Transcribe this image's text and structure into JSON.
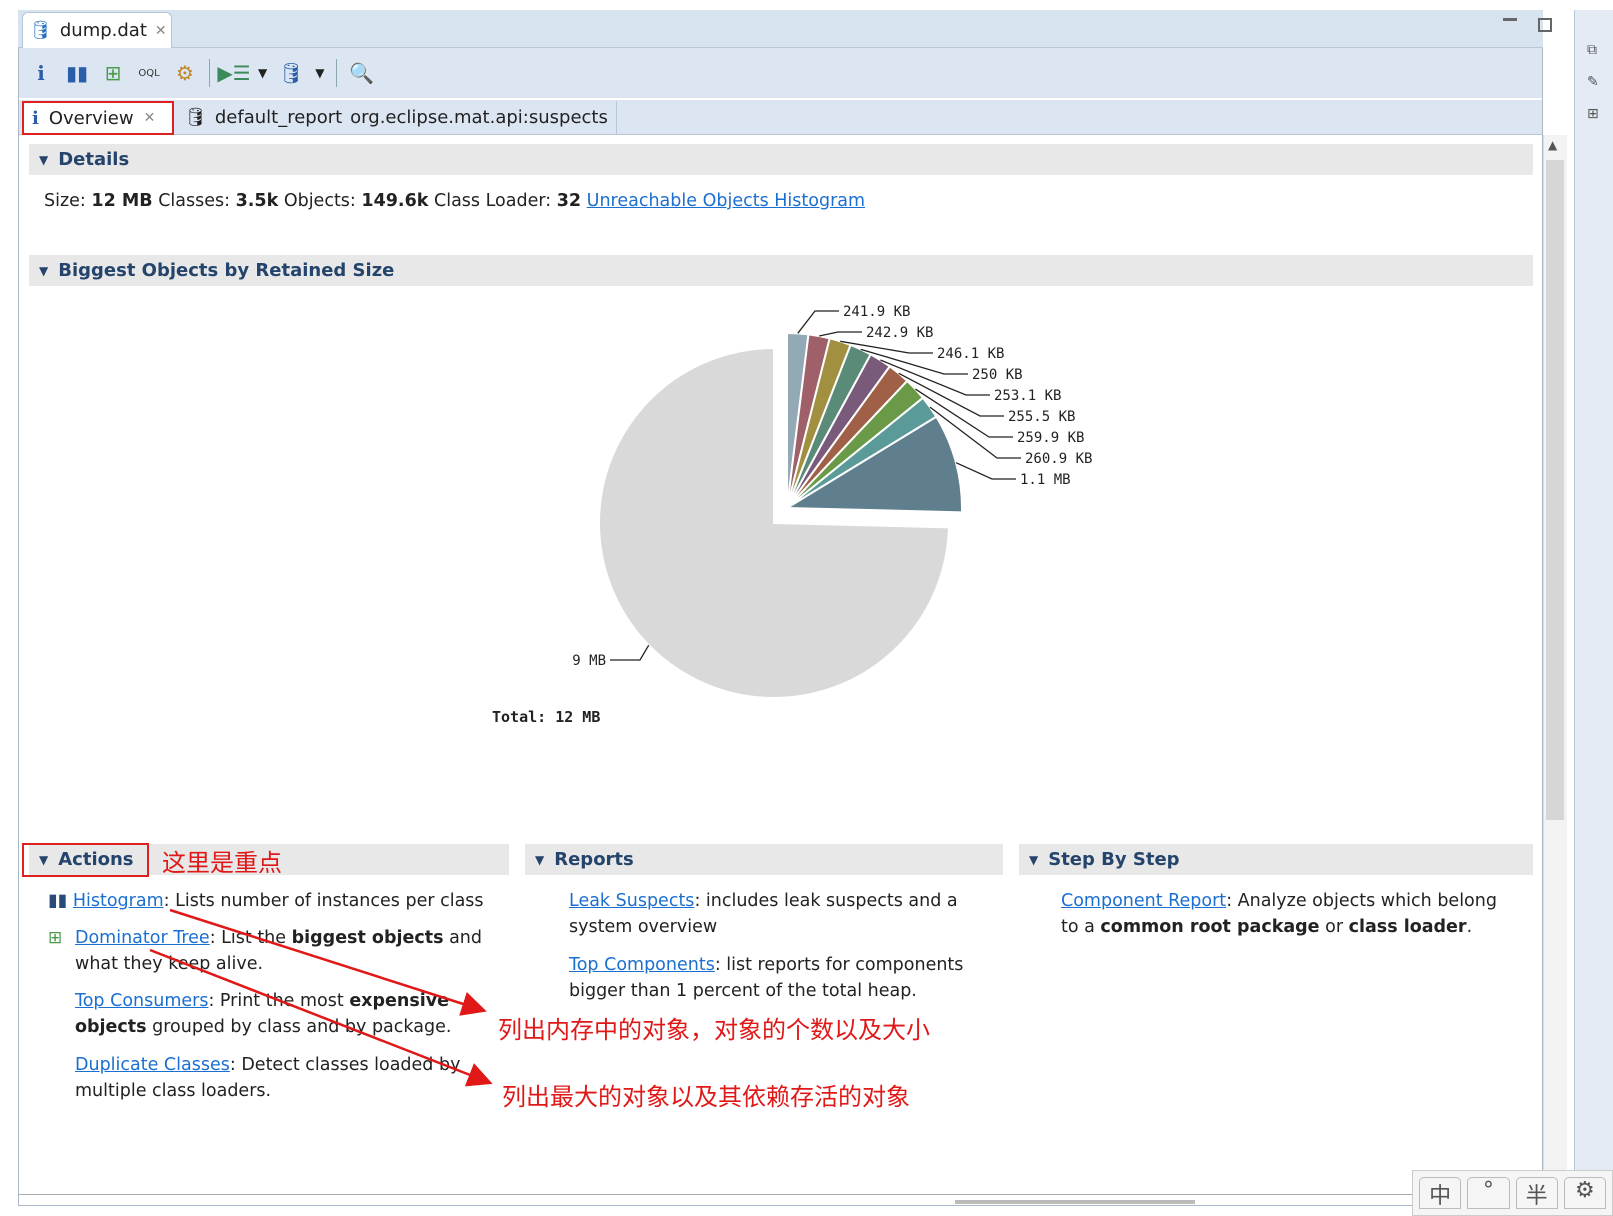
{
  "editor_tab": {
    "title": "dump.dat",
    "icon": "database-icon"
  },
  "toolbar": {
    "icons": [
      "info-icon",
      "histogram-icon",
      "dominator-tree-icon",
      "oql-icon",
      "heap-dump-overview-gear-icon",
      "run-query-icon",
      "report-icon",
      "search-icon"
    ]
  },
  "subtabs": {
    "overview": "Overview",
    "report_name": "default_report",
    "report_id": "org.eclipse.mat.api:suspects"
  },
  "details": {
    "header": "Details",
    "size_label": "Size:",
    "size": "12 MB",
    "classes_label": "Classes:",
    "classes": "3.5k",
    "objects_label": "Objects:",
    "objects": "149.6k",
    "loader_label": "Class Loader:",
    "loader": "32",
    "link": "Unreachable Objects Histogram"
  },
  "biggest": {
    "header": "Biggest Objects by Retained Size"
  },
  "chart_data": {
    "type": "pie",
    "total_label": "Total: 12 MB",
    "slices": [
      {
        "label": "241.9 KB",
        "value_kb": 241.9,
        "color": "#93a9b5"
      },
      {
        "label": "242.9 KB",
        "value_kb": 242.9,
        "color": "#a0606a"
      },
      {
        "label": "246.1 KB",
        "value_kb": 246.1,
        "color": "#a09040"
      },
      {
        "label": "250 KB",
        "value_kb": 250,
        "color": "#5a8a78"
      },
      {
        "label": "253.1 KB",
        "value_kb": 253.1,
        "color": "#7a5a7a"
      },
      {
        "label": "255.5 KB",
        "value_kb": 255.5,
        "color": "#a06048"
      },
      {
        "label": "259.9 KB",
        "value_kb": 259.9,
        "color": "#6a9a48"
      },
      {
        "label": "260.9 KB",
        "value_kb": 260.9,
        "color": "#5a9a98"
      },
      {
        "label": "1.1 MB",
        "value_kb": 1126.4,
        "color": "#5f7f8f"
      },
      {
        "label": "9 MB",
        "value_kb": 9216,
        "color": "#d9d9d9"
      }
    ]
  },
  "actions": {
    "header": "Actions",
    "annotation": "这里是重点",
    "items": [
      {
        "link": "Histogram",
        "text": ": Lists number of instances per class"
      },
      {
        "link": "Dominator Tree",
        "t1": ": List the ",
        "b1": "biggest objects",
        "t2": " and what they keep alive."
      },
      {
        "link": "Top Consumers",
        "t1": ": Print the most ",
        "b1": "expensive objects",
        "t2": " grouped by class and by package."
      },
      {
        "link": "Duplicate Classes",
        "text": ": Detect classes loaded by multiple class loaders."
      }
    ],
    "note1": "列出内存中的对象，对象的个数以及大小",
    "note2": "列出最大的对象以及其依赖存活的对象"
  },
  "reports": {
    "header": "Reports",
    "items": [
      {
        "link": "Leak Suspects",
        "text": ": includes leak suspects and a system overview"
      },
      {
        "link": "Top Components",
        "text": ": list reports for components bigger than 1 percent of the total heap."
      }
    ]
  },
  "step": {
    "header": "Step By Step",
    "link": "Component Report",
    "t1": ": Analyze objects which belong to a ",
    "b1": "common root package",
    "t2": " or ",
    "b2": "class loader",
    "t3": "."
  },
  "ime": [
    "中",
    "°",
    "半",
    "⚙"
  ]
}
